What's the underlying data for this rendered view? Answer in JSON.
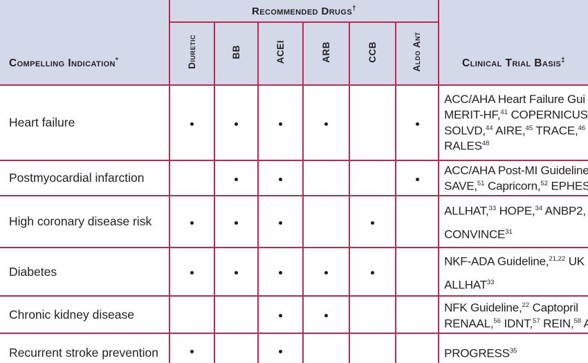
{
  "table": {
    "colors": {
      "border": "#c2274e",
      "header_bg": "#d3d9e8",
      "text": "#231f20",
      "dot": "#1a1a1a"
    },
    "header": {
      "indication_label": "Compelling Indication",
      "indication_sup": "*",
      "drugs_label": "Recommended Drugs",
      "drugs_sup": "†",
      "trial_label": "Clinical Trial Basis",
      "trial_sup": "‡",
      "drug_columns": [
        "Diuretic",
        "BB",
        "ACEI",
        "ARB",
        "CCB",
        "Aldo Ant"
      ]
    },
    "rows": [
      {
        "indication": "Heart failure",
        "dots": [
          true,
          true,
          true,
          true,
          false,
          true
        ],
        "trial_lines": [
          [
            {
              "t": "ACC/AHA Heart Failure Gui"
            }
          ],
          [
            {
              "t": "MERIT-HF,"
            },
            {
              "s": "41"
            },
            {
              "t": " COPERNICUS,"
            }
          ],
          [
            {
              "t": "SOLVD,"
            },
            {
              "s": "44"
            },
            {
              "t": " AIRE,"
            },
            {
              "s": "45"
            },
            {
              "t": " TRACE,"
            },
            {
              "s": "46"
            },
            {
              "t": " V"
            }
          ],
          [
            {
              "t": "RALES"
            },
            {
              "s": "48"
            }
          ]
        ]
      },
      {
        "indication": "Postmyocardial infarction",
        "dots": [
          false,
          true,
          true,
          false,
          false,
          true
        ],
        "trial_lines": [
          [
            {
              "t": "ACC/AHA Post-MI Guideline"
            }
          ],
          [
            {
              "t": "SAVE,"
            },
            {
              "s": "51"
            },
            {
              "t": " Capricorn,"
            },
            {
              "s": "52"
            },
            {
              "t": " EPHES"
            }
          ]
        ]
      },
      {
        "indication": "High coronary disease risk",
        "dots": [
          true,
          true,
          true,
          false,
          true,
          false
        ],
        "trial_lines": [
          [
            {
              "t": "ALLHAT,"
            },
            {
              "s": "33"
            },
            {
              "t": " HOPE,"
            },
            {
              "s": "34"
            },
            {
              "t": " ANBP2,"
            }
          ],
          [
            {
              "t": "CONVINCE"
            },
            {
              "s": "31"
            }
          ]
        ]
      },
      {
        "indication": "Diabetes",
        "dots": [
          true,
          true,
          true,
          true,
          true,
          false
        ],
        "trial_lines": [
          [
            {
              "t": "NKF-ADA Guideline,"
            },
            {
              "s": "21,22"
            },
            {
              "t": " UK"
            }
          ],
          [
            {
              "t": "ALLHAT"
            },
            {
              "s": "33"
            }
          ]
        ]
      },
      {
        "indication": "Chronic kidney disease",
        "dots": [
          false,
          false,
          true,
          true,
          false,
          false
        ],
        "trial_lines": [
          [
            {
              "t": "NFK Guideline,"
            },
            {
              "s": "22"
            },
            {
              "t": " Captopril"
            }
          ],
          [
            {
              "t": "RENAAL,"
            },
            {
              "s": "56"
            },
            {
              "t": " IDNT,"
            },
            {
              "s": "57"
            },
            {
              "t": " REIN,"
            },
            {
              "s": "58"
            },
            {
              "t": " A"
            }
          ]
        ]
      },
      {
        "indication": "Recurrent stroke prevention",
        "dots": [
          true,
          false,
          true,
          false,
          false,
          false
        ],
        "trial_lines": [
          [
            {
              "t": "PROGRESS"
            },
            {
              "s": "35"
            }
          ]
        ]
      }
    ]
  }
}
